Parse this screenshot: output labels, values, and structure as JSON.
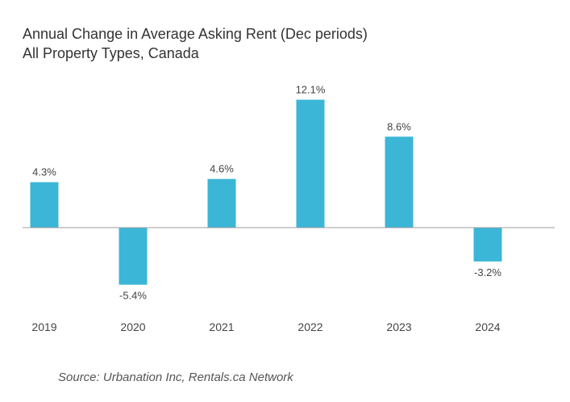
{
  "title": "Annual Change in Average Asking Rent (Dec periods)",
  "subtitle": "All Property Types, Canada",
  "source": "Source: Urbanation Inc, Rentals.ca Network",
  "colors": {
    "bar": "#3bb6d6",
    "axis": "#9e9e9e",
    "text": "#444444"
  },
  "chart_data": {
    "type": "bar",
    "title": "Annual Change in Average Asking Rent (Dec periods)",
    "subtitle": "All Property Types, Canada",
    "xlabel": "",
    "ylabel": "",
    "categories": [
      "2019",
      "2020",
      "2021",
      "2022",
      "2023",
      "2024"
    ],
    "values": [
      4.3,
      -5.4,
      4.6,
      12.1,
      8.6,
      -3.2
    ],
    "data_labels": [
      "4.3%",
      "-5.4%",
      "4.6%",
      "12.1%",
      "8.6%",
      "-3.2%"
    ],
    "ylim": [
      -6.5,
      14
    ],
    "grid": false,
    "legend": "none"
  }
}
